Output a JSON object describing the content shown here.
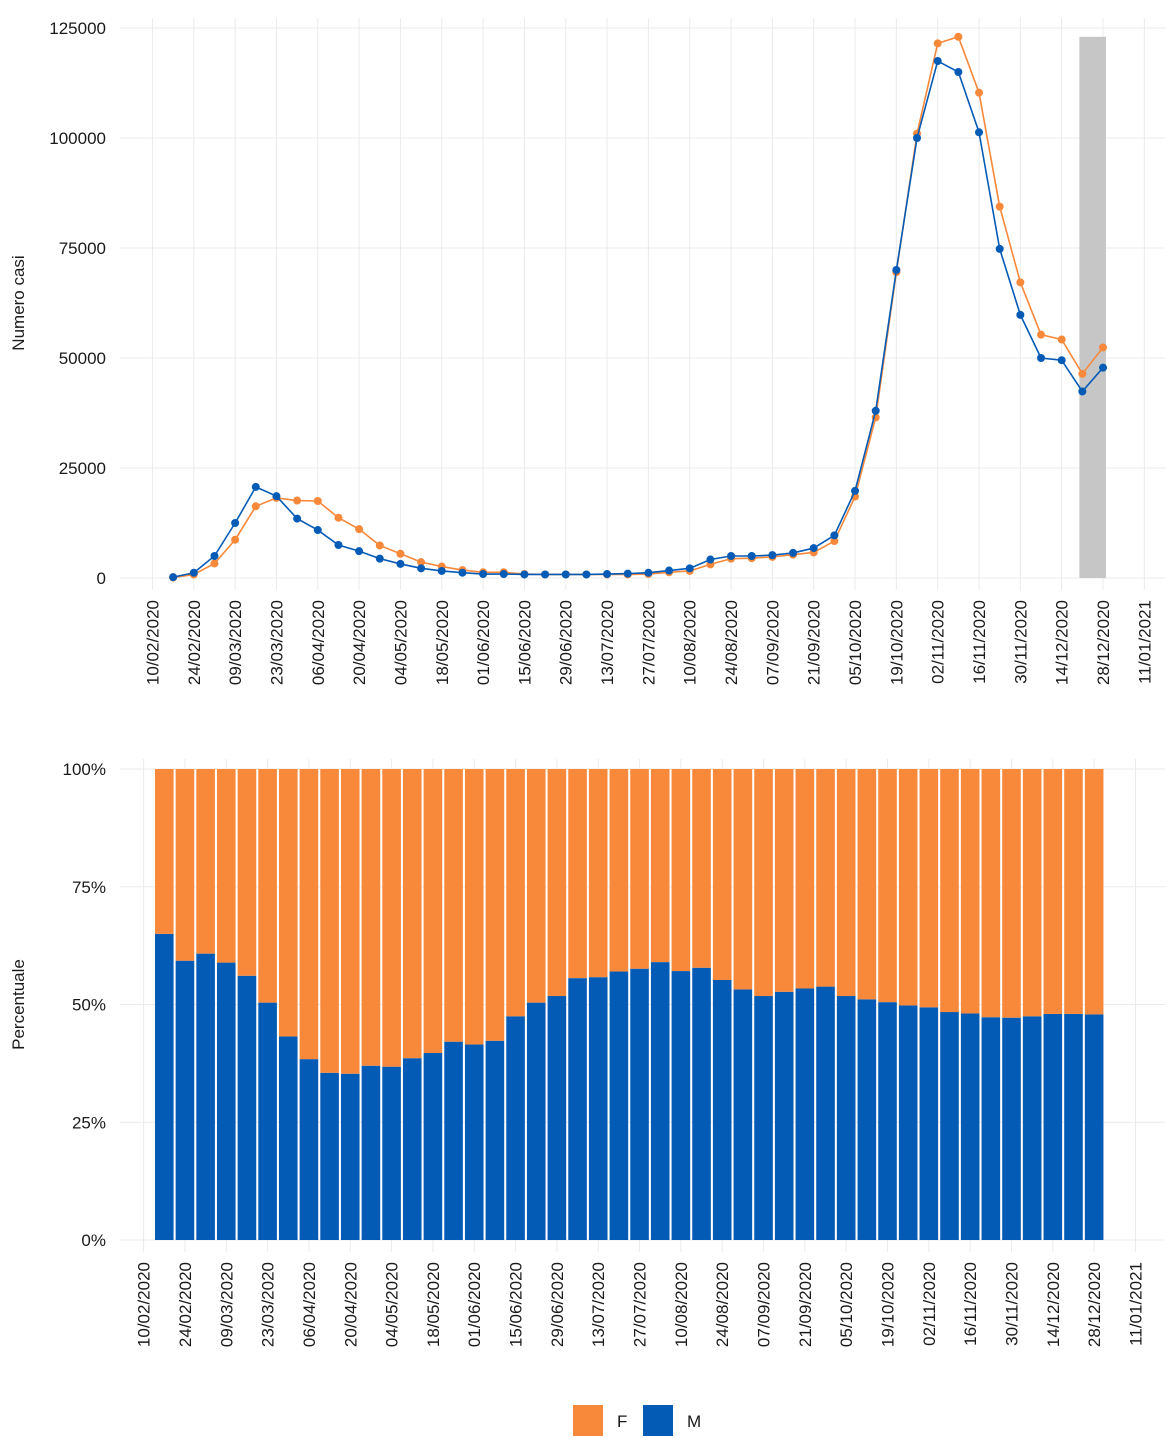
{
  "chart_data": [
    {
      "type": "line",
      "y_label": "Numero casi",
      "x": [
        "17/02/2020",
        "24/02/2020",
        "02/03/2020",
        "09/03/2020",
        "16/03/2020",
        "23/03/2020",
        "30/03/2020",
        "06/04/2020",
        "13/04/2020",
        "20/04/2020",
        "27/04/2020",
        "04/05/2020",
        "11/05/2020",
        "18/05/2020",
        "25/05/2020",
        "01/06/2020",
        "08/06/2020",
        "15/06/2020",
        "22/06/2020",
        "29/06/2020",
        "06/07/2020",
        "13/07/2020",
        "20/07/2020",
        "27/07/2020",
        "03/08/2020",
        "10/08/2020",
        "17/08/2020",
        "24/08/2020",
        "31/08/2020",
        "07/09/2020",
        "14/09/2020",
        "21/09/2020",
        "28/09/2020",
        "05/10/2020",
        "12/10/2020",
        "19/10/2020",
        "26/10/2020",
        "02/11/2020",
        "09/11/2020",
        "16/11/2020",
        "23/11/2020",
        "30/11/2020",
        "07/12/2020",
        "14/12/2020",
        "21/12/2020",
        "28/12/2020"
      ],
      "series": [
        {
          "name": "F",
          "color": "#f8883a",
          "values": [
            100,
            800,
            3300,
            8700,
            16300,
            18200,
            17600,
            17500,
            13700,
            11100,
            7400,
            5500,
            3600,
            2600,
            1800,
            1300,
            1300,
            900,
            800,
            800,
            800,
            800,
            800,
            900,
            1300,
            1600,
            3100,
            4400,
            4500,
            4800,
            5300,
            5800,
            8400,
            18500,
            36500,
            69500,
            101000,
            121500,
            123000,
            110300,
            84400,
            67200,
            55300,
            54200,
            46400,
            52400
          ]
        },
        {
          "name": "M",
          "color": "#045bb6",
          "values": [
            200,
            1200,
            5000,
            12500,
            20700,
            18600,
            13500,
            10900,
            7500,
            6100,
            4400,
            3200,
            2200,
            1600,
            1200,
            900,
            900,
            800,
            800,
            800,
            800,
            900,
            1000,
            1200,
            1700,
            2200,
            4200,
            5000,
            5000,
            5200,
            5700,
            6800,
            9700,
            19800,
            38000,
            70000,
            100000,
            117500,
            115000,
            101300,
            74800,
            59800,
            50000,
            49500,
            42400,
            47800
          ]
        }
      ],
      "highlight": {
        "xlim": [
          "20/12/2020",
          "29/12/2020"
        ],
        "ylim": [
          0,
          123000
        ],
        "color": "#c6c6c6"
      },
      "xlim": [
        "30/01/2020",
        "18/01/2021"
      ],
      "xticks": [
        "10/02/2020",
        "24/02/2020",
        "09/03/2020",
        "23/03/2020",
        "06/04/2020",
        "20/04/2020",
        "04/05/2020",
        "18/05/2020",
        "01/06/2020",
        "15/06/2020",
        "29/06/2020",
        "13/07/2020",
        "27/07/2020",
        "10/08/2020",
        "24/08/2020",
        "07/09/2020",
        "21/09/2020",
        "05/10/2020",
        "19/10/2020",
        "02/11/2020",
        "16/11/2020",
        "30/11/2020",
        "14/12/2020",
        "28/12/2020",
        "11/01/2021"
      ],
      "ylim": [
        0,
        125000
      ],
      "yticks": [
        0,
        25000,
        50000,
        75000,
        100000,
        125000
      ],
      "grid": true
    },
    {
      "type": "stacked_bar",
      "y_label": "Percentuale",
      "x": [
        "17/02/2020",
        "24/02/2020",
        "02/03/2020",
        "09/03/2020",
        "16/03/2020",
        "23/03/2020",
        "30/03/2020",
        "06/04/2020",
        "13/04/2020",
        "20/04/2020",
        "27/04/2020",
        "04/05/2020",
        "11/05/2020",
        "18/05/2020",
        "25/05/2020",
        "01/06/2020",
        "08/06/2020",
        "15/06/2020",
        "22/06/2020",
        "29/06/2020",
        "06/07/2020",
        "13/07/2020",
        "20/07/2020",
        "27/07/2020",
        "03/08/2020",
        "10/08/2020",
        "17/08/2020",
        "24/08/2020",
        "31/08/2020",
        "07/09/2020",
        "14/09/2020",
        "21/09/2020",
        "28/09/2020",
        "05/10/2020",
        "12/10/2020",
        "19/10/2020",
        "26/10/2020",
        "02/11/2020",
        "09/11/2020",
        "16/11/2020",
        "23/11/2020",
        "30/11/2020",
        "07/12/2020",
        "14/12/2020",
        "21/12/2020",
        "28/12/2020"
      ],
      "series": [
        {
          "name": "M",
          "color": "#045bb6",
          "values": [
            65.0,
            59.3,
            60.8,
            58.9,
            56.1,
            50.4,
            43.2,
            38.4,
            35.5,
            35.3,
            37.0,
            36.8,
            38.6,
            39.7,
            42.1,
            41.5,
            42.3,
            47.5,
            50.4,
            51.8,
            55.6,
            55.8,
            57.0,
            57.6,
            59.0,
            57.1,
            57.8,
            55.2,
            53.2,
            51.8,
            52.7,
            53.4,
            53.8,
            51.8,
            51.1,
            50.5,
            49.8,
            49.4,
            48.4,
            48.1,
            47.3,
            47.2,
            47.5,
            48.0,
            48.0,
            47.9
          ]
        },
        {
          "name": "F",
          "color": "#f8883a",
          "values": [
            35.0,
            40.7,
            39.2,
            41.1,
            43.9,
            49.6,
            56.8,
            61.6,
            64.5,
            64.7,
            63.0,
            63.2,
            61.4,
            60.3,
            57.9,
            58.5,
            57.7,
            52.5,
            49.6,
            48.2,
            44.4,
            44.2,
            43.0,
            42.4,
            41.0,
            42.9,
            42.2,
            44.8,
            46.8,
            48.2,
            47.3,
            46.6,
            46.2,
            48.2,
            48.9,
            49.5,
            50.2,
            50.6,
            51.6,
            51.9,
            52.7,
            52.8,
            52.5,
            52.0,
            52.0,
            52.1
          ]
        }
      ],
      "xlim": [
        "02/02/2020",
        "21/01/2021"
      ],
      "xticks": [
        "10/02/2020",
        "24/02/2020",
        "09/03/2020",
        "23/03/2020",
        "06/04/2020",
        "20/04/2020",
        "04/05/2020",
        "18/05/2020",
        "01/06/2020",
        "15/06/2020",
        "29/06/2020",
        "13/07/2020",
        "27/07/2020",
        "10/08/2020",
        "24/08/2020",
        "07/09/2020",
        "21/09/2020",
        "05/10/2020",
        "19/10/2020",
        "02/11/2020",
        "16/11/2020",
        "30/11/2020",
        "14/12/2020",
        "28/12/2020",
        "11/01/2021"
      ],
      "ylim": [
        0,
        100
      ],
      "yticks": [
        {
          "value": 0,
          "label": "0%"
        },
        {
          "value": 25,
          "label": "25%"
        },
        {
          "value": 50,
          "label": "50%"
        },
        {
          "value": 75,
          "label": "75%"
        },
        {
          "value": 100,
          "label": "100%"
        }
      ],
      "grid": true,
      "legend": "bottom"
    }
  ]
}
